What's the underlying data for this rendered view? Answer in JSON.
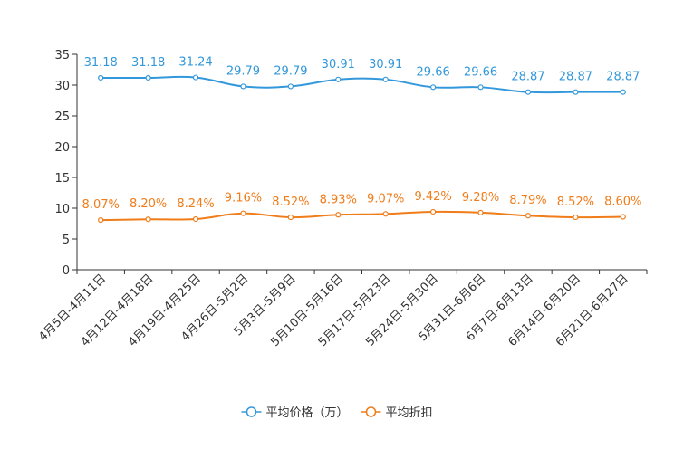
{
  "chart_data": {
    "type": "line",
    "categories": [
      "4月5日-4月11日",
      "4月12日-4月18日",
      "4月19日-4月25日",
      "4月26日-5月2日",
      "5月3日-5月9日",
      "5月10日-5月16日",
      "5月17日-5月23日",
      "5月24日-5月30日",
      "5月31日-6月6日",
      "6月7日-6月13日",
      "6月14日-6月20日",
      "6月21日-6月27日"
    ],
    "series": [
      {
        "name": "平均价格（万）",
        "color": "#3398DB",
        "values": [
          31.18,
          31.18,
          31.24,
          29.79,
          29.79,
          30.91,
          30.91,
          29.66,
          29.66,
          28.87,
          28.87,
          28.87
        ],
        "labels": [
          "31.18",
          "31.18",
          "31.24",
          "29.79",
          "29.79",
          "30.91",
          "30.91",
          "29.66",
          "29.66",
          "28.87",
          "28.87",
          "28.87"
        ]
      },
      {
        "name": "平均折扣",
        "color": "#F07C1A",
        "values": [
          8.07,
          8.2,
          8.24,
          9.16,
          8.52,
          8.93,
          9.07,
          9.42,
          9.28,
          8.79,
          8.52,
          8.6
        ],
        "labels": [
          "8.07%",
          "8.20%",
          "8.24%",
          "9.16%",
          "8.52%",
          "8.93%",
          "9.07%",
          "9.42%",
          "9.28%",
          "8.79%",
          "8.52%",
          "8.60%"
        ]
      }
    ],
    "y_ticks": [
      "0",
      "5",
      "10",
      "15",
      "20",
      "25",
      "30",
      "35"
    ],
    "ylim": [
      0,
      35
    ],
    "title": "",
    "xlabel": "",
    "ylabel": "",
    "legend_position": "bottom-center"
  }
}
